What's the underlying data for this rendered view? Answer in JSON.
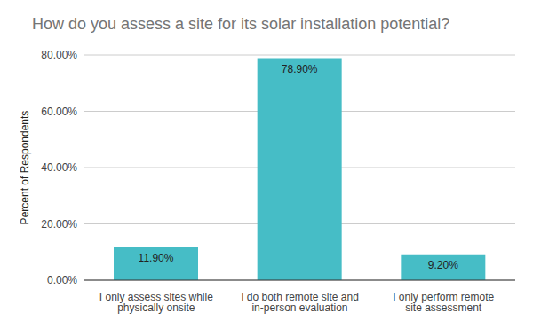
{
  "chart_data": {
    "type": "bar",
    "title": "How do you assess a site for its solar installation potential?",
    "y_label": "Percent of Respondents",
    "categories": [
      "I only assess sites while physically onsite",
      "I do both remote site and in-person evaluation",
      "I only perform remote site assessment"
    ],
    "values": [
      11.9,
      78.9,
      9.2
    ],
    "value_labels": [
      "11.90%",
      "78.90%",
      "9.20%"
    ],
    "data_labels": true,
    "color": "#46bdc6",
    "ylim": [
      0,
      80
    ],
    "yticks": [
      {
        "value": 0,
        "label": "0.00%"
      },
      {
        "value": 20,
        "label": "20.00%"
      },
      {
        "value": 40,
        "label": "40.00%"
      },
      {
        "value": 60,
        "label": "60.00%"
      },
      {
        "value": 80,
        "label": "80.00%"
      }
    ],
    "grid": true
  }
}
